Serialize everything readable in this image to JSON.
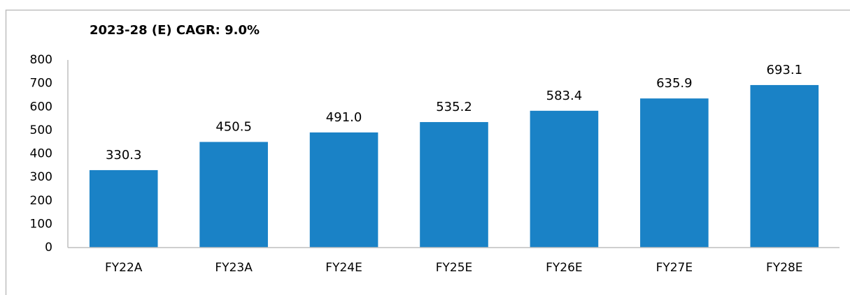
{
  "chart_data": {
    "type": "bar",
    "title": "2023-28 (E) CAGR: 9.0%",
    "categories": [
      "FY22A",
      "FY23A",
      "FY24E",
      "FY25E",
      "FY26E",
      "FY27E",
      "FY28E"
    ],
    "values": [
      330.3,
      450.5,
      491.0,
      535.2,
      583.4,
      635.9,
      693.1
    ],
    "value_labels": [
      "330.3",
      "450.5",
      "491.0",
      "535.2",
      "583.4",
      "635.9",
      "693.1"
    ],
    "color": "#1a82c6",
    "ylim": [
      0,
      800
    ],
    "yticks": [
      0,
      100,
      200,
      300,
      400,
      500,
      600,
      700,
      800
    ],
    "grid": false
  }
}
